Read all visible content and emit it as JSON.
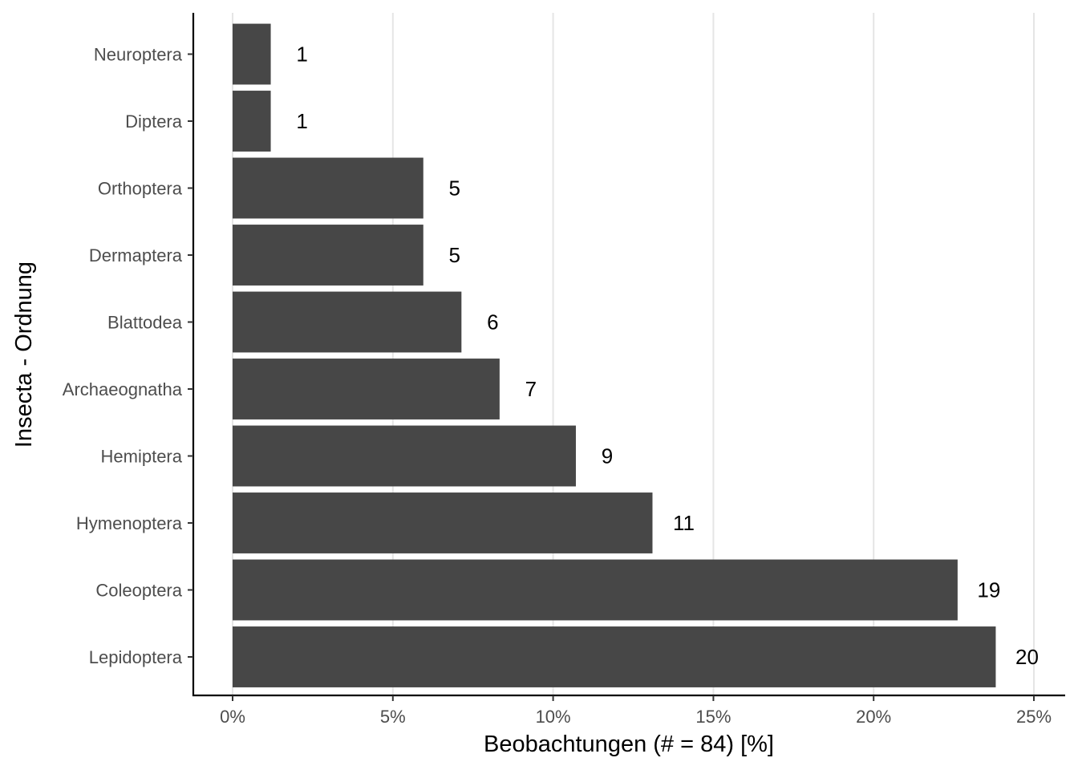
{
  "chart_data": {
    "type": "bar",
    "orientation": "horizontal",
    "title": "",
    "xlabel": "Beobachtungen (# = 84) [%]",
    "ylabel": "Insecta - Ordnung",
    "categories": [
      "Lepidoptera",
      "Coleoptera",
      "Hymenoptera",
      "Hemiptera",
      "Archaeognatha",
      "Blattodea",
      "Dermaptera",
      "Orthoptera",
      "Diptera",
      "Neuroptera"
    ],
    "counts": [
      20,
      19,
      11,
      9,
      7,
      6,
      5,
      5,
      1,
      1
    ],
    "values": [
      23.81,
      22.62,
      13.1,
      10.71,
      8.33,
      7.14,
      5.95,
      5.95,
      1.19,
      1.19
    ],
    "xlim": [
      -1.2,
      26
    ],
    "x_ticks": [
      0,
      5,
      10,
      15,
      20,
      25
    ],
    "x_tick_labels": [
      "0%",
      "5%",
      "10%",
      "15%",
      "20%",
      "25%"
    ],
    "grid": "vertical major",
    "legend": "none",
    "bar_color": "#474747",
    "grid_color": "#e5e5e5"
  }
}
